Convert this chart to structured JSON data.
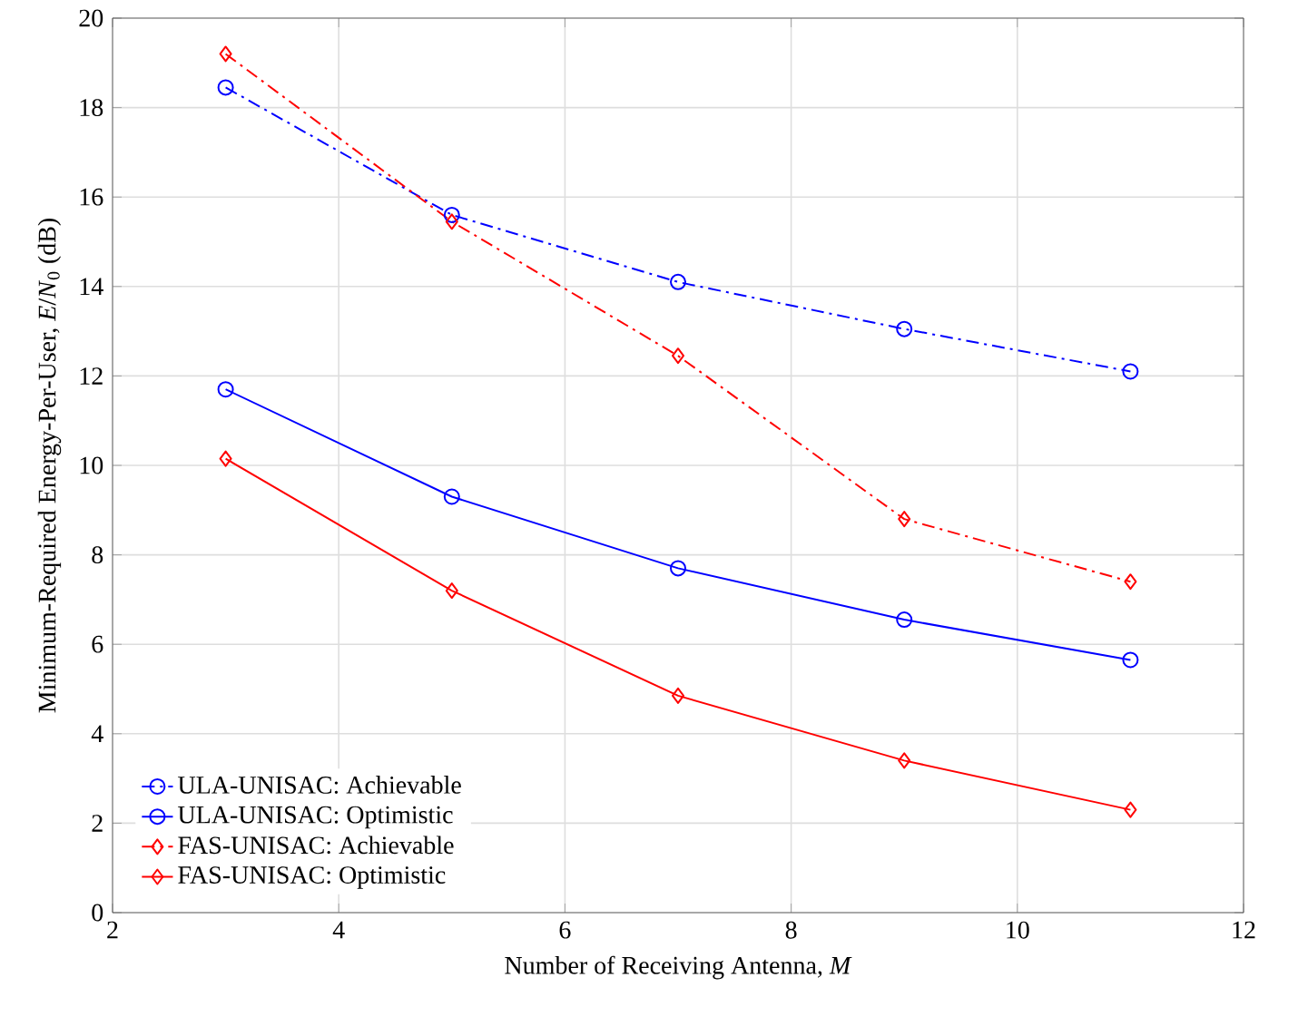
{
  "chart_data": {
    "type": "line",
    "xlabel": "Number of Receiving Antenna, *M*",
    "ylabel": "Minimum-Required Energy-Per-User, *E*/*N*$_{0}$ (dB)",
    "x": [
      3,
      5,
      7,
      9,
      11
    ],
    "series": [
      {
        "name": "ULA-UNISAC: Achievable",
        "color": "#0000ff",
        "marker": "circle",
        "line_style": "dashdot",
        "values": [
          18.45,
          15.6,
          14.1,
          13.05,
          12.1
        ]
      },
      {
        "name": "ULA-UNISAC: Optimistic",
        "color": "#0000ff",
        "marker": "circle",
        "line_style": "solid",
        "values": [
          11.7,
          9.3,
          7.7,
          6.55,
          5.65
        ]
      },
      {
        "name": "FAS-UNISAC: Achievable",
        "color": "#ff0000",
        "marker": "diamond",
        "line_style": "dashdot",
        "values": [
          19.2,
          15.45,
          12.45,
          8.8,
          7.4
        ]
      },
      {
        "name": "FAS-UNISAC: Optimistic",
        "color": "#ff0000",
        "marker": "diamond",
        "line_style": "solid",
        "values": [
          10.15,
          7.2,
          4.85,
          3.4,
          2.3
        ]
      }
    ],
    "xlim": [
      2,
      12
    ],
    "xticks": [
      2,
      4,
      6,
      8,
      10,
      12
    ],
    "ylim": [
      0,
      20
    ],
    "yticks": [
      0,
      2,
      4,
      6,
      8,
      10,
      12,
      14,
      16,
      18,
      20
    ],
    "grid": true,
    "legend": "bottom left"
  }
}
